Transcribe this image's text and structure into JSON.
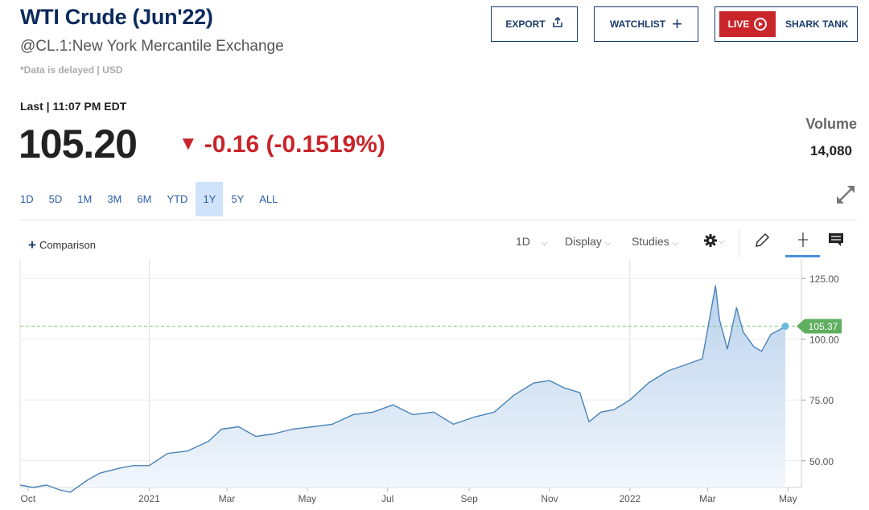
{
  "header": {
    "title": "WTI Crude (Jun'22)",
    "subtitle": "@CL.1:New York Mercantile Exchange",
    "delay_note": "*Data is delayed | USD"
  },
  "actions": {
    "export_label": "EXPORT",
    "watchlist_label": "WATCHLIST",
    "live_label": "LIVE",
    "shark_tank_label": "SHARK TANK"
  },
  "quote": {
    "last_label": "Last | 11:07 PM EDT",
    "price": "105.20",
    "change": "-0.16 (-0.1519%)",
    "volume_label": "Volume",
    "volume_value": "14,080",
    "down_color": "#c9252b"
  },
  "ranges": [
    "1D",
    "5D",
    "1M",
    "3M",
    "6M",
    "YTD",
    "1Y",
    "5Y",
    "ALL"
  ],
  "active_range": "1Y",
  "toolbar": {
    "comparison_label": "Comparison",
    "interval_label": "1D",
    "display_label": "Display",
    "studies_label": "Studies"
  },
  "chart_data": {
    "type": "area",
    "x_tick_labels": [
      "Oct",
      "2021",
      "Mar",
      "May",
      "Jul",
      "Sep",
      "Nov",
      "2022",
      "Mar",
      "May"
    ],
    "y_ticks": [
      125,
      100,
      75,
      50
    ],
    "y_tick_labels": [
      "125.00",
      "100.00",
      "75.00",
      "50.00"
    ],
    "ylim": [
      39,
      133
    ],
    "last_value": 105.37,
    "last_label": "105.37",
    "line_color": "#4a82b8",
    "marker_color": "#6bb8e0",
    "badge_color": "#5fae5f",
    "dashed_line_color": "#8fd48f",
    "series": [
      {
        "x": [
          "2020-09-25",
          "2020-10-05",
          "2020-10-15",
          "2020-10-25",
          "2020-11-02",
          "2020-11-15",
          "2020-11-25",
          "2020-12-10",
          "2020-12-20",
          "2021-01-01",
          "2021-01-15",
          "2021-01-30",
          "2021-02-15",
          "2021-02-25",
          "2021-03-10",
          "2021-03-23",
          "2021-04-05",
          "2021-04-20",
          "2021-05-05",
          "2021-05-20",
          "2021-06-05",
          "2021-06-20",
          "2021-07-05",
          "2021-07-20",
          "2021-08-05",
          "2021-08-20",
          "2021-09-05",
          "2021-09-20",
          "2021-10-05",
          "2021-10-20",
          "2021-11-01",
          "2021-11-12",
          "2021-11-24",
          "2021-12-01",
          "2021-12-10",
          "2021-12-20",
          "2022-01-01",
          "2022-01-15",
          "2022-01-30",
          "2022-02-15",
          "2022-02-25",
          "2022-03-03",
          "2022-03-07",
          "2022-03-10",
          "2022-03-16",
          "2022-03-23",
          "2022-03-28",
          "2022-04-05",
          "2022-04-11",
          "2022-04-18",
          "2022-04-25",
          "2022-04-29"
        ],
        "y": [
          40,
          39,
          40,
          38,
          37,
          42,
          45,
          47,
          48,
          48,
          53,
          54,
          58,
          63,
          64,
          60,
          61,
          63,
          64,
          65,
          69,
          70,
          73,
          69,
          70,
          65,
          68,
          70,
          77,
          82,
          83,
          80,
          78,
          66,
          70,
          71,
          75,
          82,
          87,
          90,
          92,
          110,
          122,
          108,
          96,
          113,
          103,
          97,
          95,
          102,
          104,
          105.37
        ]
      }
    ]
  }
}
